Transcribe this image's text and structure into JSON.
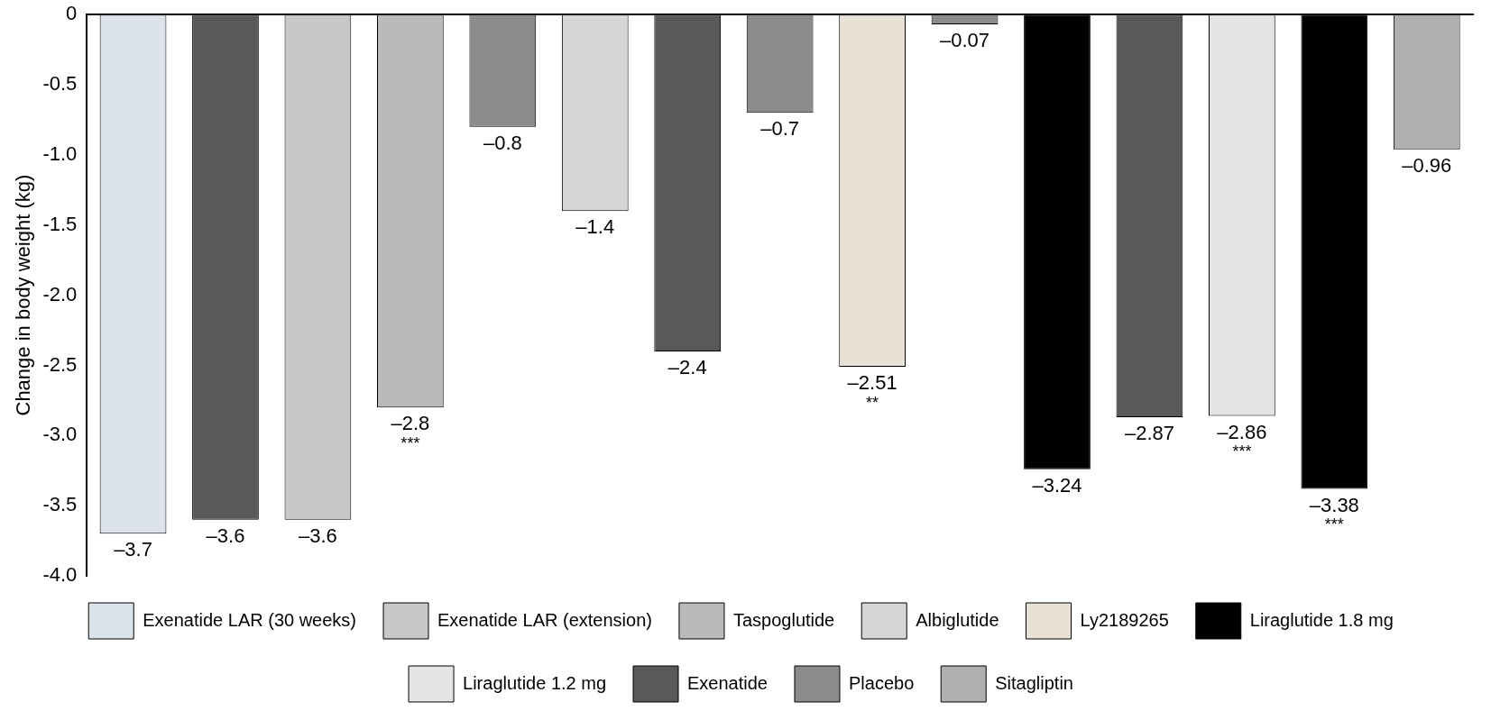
{
  "chart_data": {
    "type": "bar",
    "ylabel": "Change in body weight (kg)",
    "categories": [
      null,
      null,
      null,
      null,
      null,
      null,
      null,
      null,
      null,
      null,
      null,
      null,
      null,
      null,
      null
    ],
    "series": [
      {
        "name": "Exenatide LAR (30 weeks)",
        "color": "#dde3ea",
        "values": [
          -3.7,
          null,
          null,
          null,
          null,
          null,
          null,
          null,
          null,
          null,
          null,
          null,
          null,
          null,
          null
        ],
        "value_labels": [
          "–3.7",
          null,
          null,
          null,
          null,
          null,
          null,
          null,
          null,
          null,
          null,
          null,
          null,
          null,
          null
        ]
      },
      {
        "name": "Exenatide LAR (extension)",
        "color": "#c8c8c8",
        "values": [
          null,
          null,
          -3.6,
          null,
          null,
          null,
          null,
          null,
          null,
          null,
          null,
          null,
          null,
          null,
          null
        ],
        "value_labels": [
          null,
          null,
          "–3.6",
          null,
          null,
          null,
          null,
          null,
          null,
          null,
          null,
          null,
          null,
          null,
          null
        ]
      },
      {
        "name": "Taspoglutide",
        "color": "#bababa",
        "values": [
          null,
          null,
          null,
          -2.8,
          null,
          null,
          null,
          null,
          null,
          null,
          null,
          null,
          null,
          null,
          null
        ],
        "value_labels": [
          null,
          null,
          null,
          "–2.8\n***",
          null,
          null,
          null,
          null,
          null,
          null,
          null,
          null,
          null,
          null,
          null
        ]
      },
      {
        "name": "Albiglutide",
        "color": "#d6d6d6",
        "values": [
          null,
          null,
          null,
          null,
          null,
          -1.4,
          null,
          null,
          null,
          null,
          null,
          null,
          null,
          null,
          null
        ],
        "value_labels": [
          null,
          null,
          null,
          null,
          null,
          "–1.4",
          null,
          null,
          null,
          null,
          null,
          null,
          null,
          null,
          null
        ]
      },
      {
        "name": "Ly2189265",
        "color": "#e8e2d6",
        "values": [
          null,
          null,
          null,
          null,
          null,
          null,
          null,
          null,
          -2.51,
          null,
          null,
          null,
          null,
          null,
          null
        ],
        "value_labels": [
          null,
          null,
          null,
          null,
          null,
          null,
          null,
          null,
          "–2.51\n**",
          null,
          null,
          null,
          null,
          null,
          null
        ]
      },
      {
        "name": "Liraglutide 1.8 mg",
        "color": "#000000",
        "values": [
          null,
          null,
          null,
          null,
          null,
          null,
          null,
          null,
          null,
          null,
          -3.24,
          null,
          null,
          -3.38,
          null
        ],
        "value_labels": [
          null,
          null,
          null,
          null,
          null,
          null,
          null,
          null,
          null,
          null,
          "–3.24",
          null,
          null,
          "–3.38\n***",
          null
        ]
      },
      {
        "name": "Liraglutide 1.2 mg",
        "color": "#e4e4e4",
        "values": [
          null,
          null,
          null,
          null,
          null,
          null,
          null,
          null,
          null,
          null,
          null,
          null,
          -2.86,
          null,
          null
        ],
        "value_labels": [
          null,
          null,
          null,
          null,
          null,
          null,
          null,
          null,
          null,
          null,
          null,
          null,
          "–2.86\n***",
          null,
          null
        ]
      },
      {
        "name": "Exenatide",
        "color": "#595959",
        "values": [
          null,
          -3.6,
          null,
          null,
          null,
          null,
          -2.4,
          null,
          null,
          null,
          null,
          -2.87,
          null,
          null,
          null
        ],
        "value_labels": [
          null,
          "–3.6",
          null,
          null,
          null,
          null,
          "–2.4",
          null,
          null,
          null,
          null,
          "–2.87",
          null,
          null,
          null
        ]
      },
      {
        "name": "Placebo",
        "color": "#8c8c8c",
        "values": [
          null,
          null,
          null,
          null,
          -0.8,
          null,
          null,
          -0.7,
          null,
          -0.07,
          null,
          null,
          null,
          null,
          null
        ],
        "value_labels": [
          null,
          null,
          null,
          null,
          "–0.8",
          null,
          null,
          "–0.7",
          null,
          "–0.07",
          null,
          null,
          null,
          null,
          null
        ]
      },
      {
        "name": "Sitagliptin",
        "color": "#b0b0b0",
        "values": [
          null,
          null,
          null,
          null,
          null,
          null,
          null,
          null,
          null,
          null,
          null,
          null,
          null,
          null,
          -0.96
        ],
        "value_labels": [
          null,
          null,
          null,
          null,
          null,
          null,
          null,
          null,
          null,
          null,
          null,
          null,
          null,
          null,
          "–0.96"
        ]
      }
    ],
    "ylim": [
      -4.0,
      0
    ],
    "yticks": [
      {
        "value": 0,
        "label": "0"
      },
      {
        "value": -0.5,
        "label": "-0.5"
      },
      {
        "value": -1.0,
        "label": "-1.0"
      },
      {
        "value": -1.5,
        "label": "-1.5"
      },
      {
        "value": -2.0,
        "label": "-2.0"
      },
      {
        "value": -2.5,
        "label": "-2.5"
      },
      {
        "value": -3.0,
        "label": "-3.0"
      },
      {
        "value": -3.5,
        "label": "-3.5"
      },
      {
        "value": -4.0,
        "label": "-4.0"
      }
    ],
    "grid": false,
    "legend": "bottom"
  }
}
